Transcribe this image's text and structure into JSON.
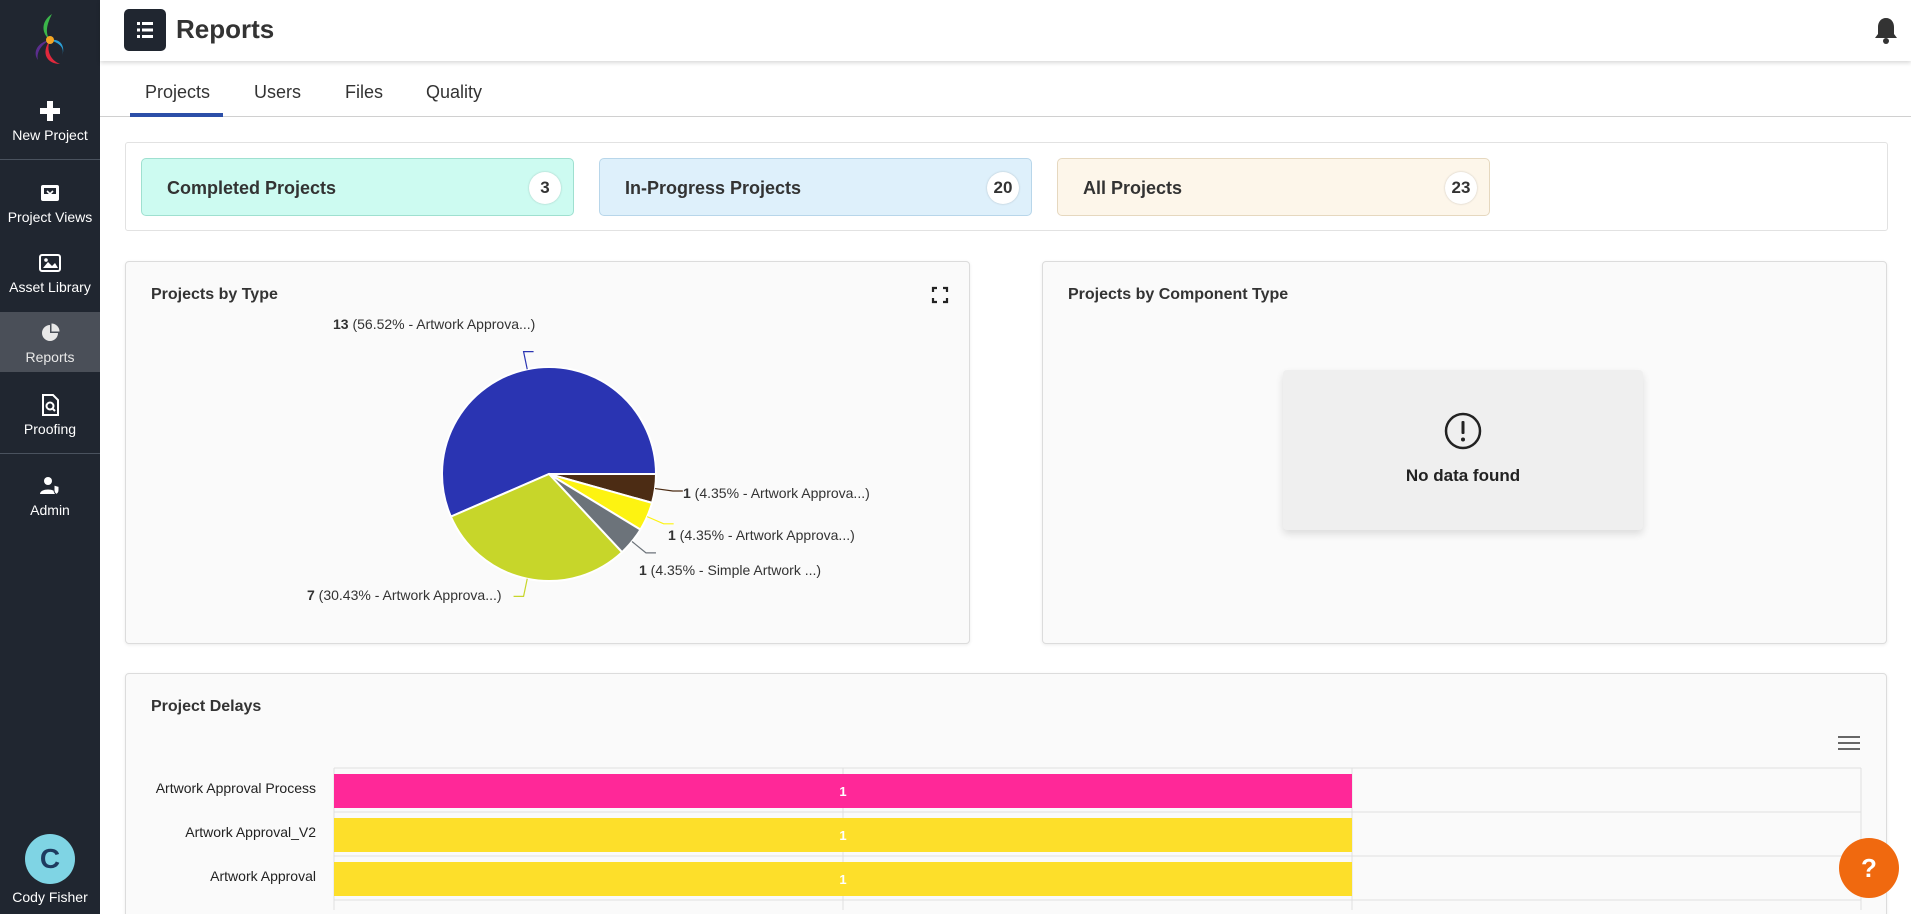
{
  "header": {
    "title": "Reports"
  },
  "sidebar": {
    "items": [
      {
        "label": "New Project",
        "icon": "plus-icon"
      },
      {
        "label": "Project Views",
        "icon": "inbox-icon"
      },
      {
        "label": "Asset Library",
        "icon": "image-icon"
      },
      {
        "label": "Reports",
        "icon": "pie-chart-icon",
        "active": true
      },
      {
        "label": "Proofing",
        "icon": "document-search-icon"
      },
      {
        "label": "Admin",
        "icon": "user-shield-icon"
      }
    ],
    "user": {
      "initial": "C",
      "name": "Cody Fisher"
    }
  },
  "tabs": [
    {
      "label": "Projects",
      "active": true
    },
    {
      "label": "Users"
    },
    {
      "label": "Files"
    },
    {
      "label": "Quality"
    }
  ],
  "stats": [
    {
      "label": "Completed Projects",
      "count": "3",
      "color": "#cdfbf1"
    },
    {
      "label": "In-Progress Projects",
      "count": "20",
      "color": "#def0fb"
    },
    {
      "label": "All Projects",
      "count": "23",
      "color": "#fdf6ea"
    }
  ],
  "panels": {
    "by_type": {
      "title": "Projects by Type"
    },
    "by_component": {
      "title": "Projects by Component Type",
      "empty_text": "No data found"
    },
    "delays": {
      "title": "Project Delays"
    }
  },
  "chart_data": [
    {
      "type": "pie",
      "title": "Projects by Type",
      "slices": [
        {
          "value": 13,
          "label_value": "13",
          "label_text": "(56.52% - Artwork Approva...)",
          "color": "#2a34b2"
        },
        {
          "value": 1,
          "label_value": "1",
          "label_text": "(4.35% - Artwork Approva...)",
          "color": "#4c2c14"
        },
        {
          "value": 1,
          "label_value": "1",
          "label_text": "(4.35% - Artwork Approva...)",
          "color": "#fdf311"
        },
        {
          "value": 1,
          "label_value": "1",
          "label_text": "(4.35% - Simple Artwork ...)",
          "color": "#6c737a"
        },
        {
          "value": 7,
          "label_value": "7",
          "label_text": "(30.43% - Artwork Approva...)",
          "color": "#c7d62a"
        }
      ]
    },
    {
      "type": "bar",
      "orientation": "horizontal",
      "title": "Project Delays",
      "categories": [
        "Artwork Approval Process",
        "Artwork Approval_V2",
        "Artwork Approval"
      ],
      "values": [
        1,
        1,
        1
      ],
      "colors": [
        "#ff2898",
        "#fddf2a",
        "#fddf2a"
      ],
      "xlim": [
        0,
        1.5
      ]
    }
  ],
  "help": {
    "label": "?"
  }
}
